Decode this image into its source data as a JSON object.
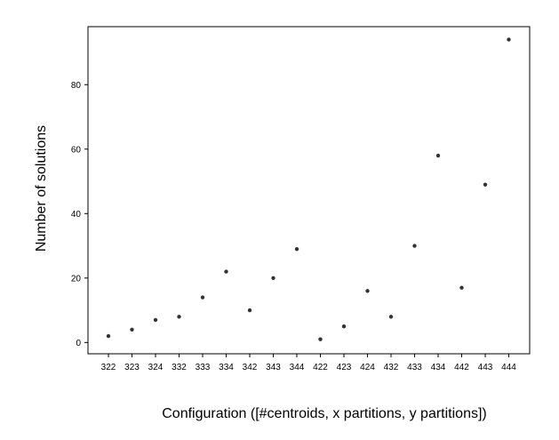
{
  "chart_data": {
    "type": "scatter",
    "title": "",
    "xlabel": "Configuration ([#centroids, x partitions, y partitions])",
    "ylabel": "Number of solutions",
    "categories": [
      "322",
      "323",
      "324",
      "332",
      "333",
      "334",
      "342",
      "343",
      "344",
      "422",
      "423",
      "424",
      "432",
      "433",
      "434",
      "442",
      "443",
      "444"
    ],
    "series": [
      {
        "values": [
          2,
          4,
          7,
          8,
          14,
          22,
          10,
          20,
          29,
          1,
          5,
          16,
          8,
          30,
          58,
          17,
          49,
          94
        ],
        "color": "#333333"
      }
    ],
    "yticks": [
      0,
      20,
      40,
      60,
      80
    ],
    "ylim": [
      -3.5,
      98
    ],
    "grid": false,
    "legend": "none"
  }
}
